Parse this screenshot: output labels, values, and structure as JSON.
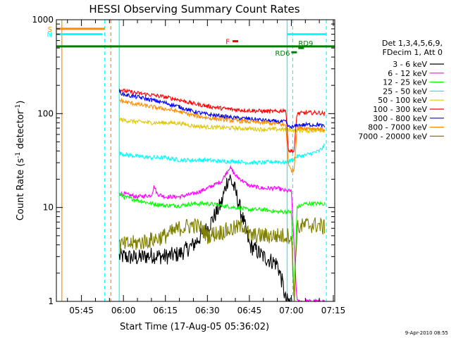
{
  "chart_data": {
    "type": "line",
    "title": "HESSI Observing Summary Count Rates",
    "xlabel": "Start Time (17-Aug-05 05:36:02)",
    "ylabel": "Count Rate (s",
    "ylabel_sup1": "-1",
    "ylabel_mid": " detector",
    "ylabel_sup2": "-1",
    "ylabel_end": ")",
    "y_scale": "log",
    "ylim": [
      1,
      1000
    ],
    "xlim": [
      "05:36:02",
      "07:15:30"
    ],
    "x_ticks": [
      "05:45",
      "06:00",
      "06:15",
      "06:30",
      "06:45",
      "07:00",
      "07:15"
    ],
    "y_ticks": [
      "1",
      "10",
      "100",
      "1000"
    ],
    "legend_header": [
      "Det 1,3,4,5,6,9,",
      "FDecim 1, Att 0"
    ],
    "legend_position": "right",
    "series": [
      {
        "name": "3 - 6 keV",
        "color": "#000000",
        "points": [
          [
            "05:58:30",
            3
          ],
          [
            "06:00",
            3
          ],
          [
            "06:05",
            2.9
          ],
          [
            "06:10",
            3.1
          ],
          [
            "06:15",
            3
          ],
          [
            "06:20",
            3.2
          ],
          [
            "06:25",
            4
          ],
          [
            "06:30",
            6
          ],
          [
            "06:35",
            11
          ],
          [
            "06:37",
            19
          ],
          [
            "06:38",
            21
          ],
          [
            "06:40",
            15
          ],
          [
            "06:43",
            7
          ],
          [
            "06:45",
            4
          ],
          [
            "06:50",
            3
          ],
          [
            "06:55",
            2.5
          ],
          [
            "06:57",
            1.5
          ],
          [
            "06:58",
            1
          ],
          [
            "07:00",
            1
          ]
        ]
      },
      {
        "name": "6 - 12 keV",
        "color": "#ff00ff",
        "points": [
          [
            "05:58:30",
            14
          ],
          [
            "06:00",
            14
          ],
          [
            "06:05",
            13
          ],
          [
            "06:10",
            13.5
          ],
          [
            "06:11",
            17
          ],
          [
            "06:12",
            14
          ],
          [
            "06:15",
            13
          ],
          [
            "06:20",
            13
          ],
          [
            "06:25",
            14
          ],
          [
            "06:30",
            16
          ],
          [
            "06:35",
            19
          ],
          [
            "06:38",
            27
          ],
          [
            "06:40",
            22
          ],
          [
            "06:45",
            17
          ],
          [
            "06:50",
            16
          ],
          [
            "06:55",
            16
          ],
          [
            "06:58",
            15
          ],
          [
            "07:00",
            15
          ],
          [
            "07:02",
            1
          ],
          [
            "07:10",
            1
          ],
          [
            "07:12",
            1
          ]
        ]
      },
      {
        "name": "12 - 25 keV",
        "color": "#00ff00",
        "points": [
          [
            "05:58:30",
            14
          ],
          [
            "06:00",
            13
          ],
          [
            "06:05",
            12
          ],
          [
            "06:10",
            11
          ],
          [
            "06:15",
            10.5
          ],
          [
            "06:20",
            10.5
          ],
          [
            "06:25",
            11
          ],
          [
            "06:30",
            11
          ],
          [
            "06:35",
            10.5
          ],
          [
            "06:40",
            10
          ],
          [
            "06:45",
            9.5
          ],
          [
            "06:50",
            9.5
          ],
          [
            "06:55",
            9
          ],
          [
            "06:58",
            9
          ],
          [
            "07:00",
            9
          ],
          [
            "07:01",
            1
          ],
          [
            "07:02",
            10
          ],
          [
            "07:05",
            11
          ],
          [
            "07:10",
            11
          ],
          [
            "07:12",
            11
          ]
        ]
      },
      {
        "name": "25 - 50 keV",
        "color": "#00ffff",
        "points": [
          [
            "05:58:30",
            38
          ],
          [
            "06:00",
            37
          ],
          [
            "06:05",
            35
          ],
          [
            "06:10",
            34
          ],
          [
            "06:15",
            34
          ],
          [
            "06:20",
            32
          ],
          [
            "06:25",
            32
          ],
          [
            "06:30",
            32
          ],
          [
            "06:35",
            31
          ],
          [
            "06:40",
            31
          ],
          [
            "06:45",
            30
          ],
          [
            "06:50",
            30
          ],
          [
            "06:55",
            31
          ],
          [
            "06:58",
            30
          ],
          [
            "07:00",
            32
          ],
          [
            "07:02",
            35
          ],
          [
            "07:05",
            36
          ],
          [
            "07:10",
            40
          ],
          [
            "07:12",
            46
          ]
        ]
      },
      {
        "name": "50 - 100 keV",
        "color": "#e0c800",
        "points": [
          [
            "05:58:30",
            88
          ],
          [
            "06:00",
            85
          ],
          [
            "06:05",
            82
          ],
          [
            "06:10",
            80
          ],
          [
            "06:15",
            80
          ],
          [
            "06:20",
            79
          ],
          [
            "06:25",
            74
          ],
          [
            "06:30",
            72
          ],
          [
            "06:35",
            71
          ],
          [
            "06:40",
            70
          ],
          [
            "06:45",
            69
          ],
          [
            "06:50",
            68
          ],
          [
            "06:55",
            68
          ],
          [
            "06:58",
            68
          ],
          [
            "07:00",
            67
          ],
          [
            "07:02",
            66
          ],
          [
            "07:05",
            66
          ],
          [
            "07:10",
            66
          ],
          [
            "07:12",
            67
          ]
        ]
      },
      {
        "name": "100 - 300 keV",
        "color": "#ff0000",
        "points": [
          [
            "05:58:30",
            182
          ],
          [
            "06:00",
            175
          ],
          [
            "06:05",
            165
          ],
          [
            "06:10",
            158
          ],
          [
            "06:15",
            150
          ],
          [
            "06:20",
            140
          ],
          [
            "06:25",
            128
          ],
          [
            "06:30",
            120
          ],
          [
            "06:35",
            114
          ],
          [
            "06:40",
            110
          ],
          [
            "06:45",
            108
          ],
          [
            "06:50",
            106
          ],
          [
            "06:55",
            105
          ],
          [
            "06:58",
            110
          ],
          [
            "06:59",
            40
          ],
          [
            "07:00",
            40
          ],
          [
            "07:01",
            40
          ],
          [
            "07:02",
            100
          ],
          [
            "07:05",
            102
          ],
          [
            "07:10",
            102
          ],
          [
            "07:12",
            100
          ]
        ]
      },
      {
        "name": "300 - 800 keV",
        "color": "#0000ff",
        "points": [
          [
            "05:58:30",
            172
          ],
          [
            "06:00",
            160
          ],
          [
            "06:05",
            150
          ],
          [
            "06:10",
            140
          ],
          [
            "06:15",
            130
          ],
          [
            "06:20",
            118
          ],
          [
            "06:25",
            105
          ],
          [
            "06:30",
            98
          ],
          [
            "06:35",
            94
          ],
          [
            "06:40",
            90
          ],
          [
            "06:45",
            88
          ],
          [
            "06:50",
            85
          ],
          [
            "06:55",
            82
          ],
          [
            "06:58",
            82
          ],
          [
            "06:59",
            72
          ],
          [
            "07:00",
            72
          ],
          [
            "07:01",
            72
          ],
          [
            "07:02",
            75
          ],
          [
            "07:05",
            76
          ],
          [
            "07:10",
            76
          ],
          [
            "07:12",
            72
          ]
        ]
      },
      {
        "name": "800 - 7000 keV",
        "color": "#ff8c00",
        "points": [
          [
            "05:58:30",
            140
          ],
          [
            "06:00",
            134
          ],
          [
            "06:05",
            126
          ],
          [
            "06:10",
            118
          ],
          [
            "06:15",
            112
          ],
          [
            "06:20",
            105
          ],
          [
            "06:25",
            96
          ],
          [
            "06:30",
            90
          ],
          [
            "06:35",
            87
          ],
          [
            "06:40",
            84
          ],
          [
            "06:45",
            82
          ],
          [
            "06:50",
            80
          ],
          [
            "06:55",
            78
          ],
          [
            "06:58",
            75
          ],
          [
            "06:59",
            28
          ],
          [
            "07:00",
            25
          ],
          [
            "07:01",
            25
          ],
          [
            "07:02",
            70
          ],
          [
            "07:05",
            70
          ],
          [
            "07:10",
            69
          ],
          [
            "07:12",
            68
          ]
        ]
      },
      {
        "name": "7000 - 20000 keV",
        "color": "#808000",
        "points": [
          [
            "05:58:30",
            4
          ],
          [
            "06:00",
            4
          ],
          [
            "06:05",
            4.2
          ],
          [
            "06:10",
            4.5
          ],
          [
            "06:15",
            5
          ],
          [
            "06:20",
            6
          ],
          [
            "06:25",
            6.5
          ],
          [
            "06:28",
            6
          ],
          [
            "06:30",
            5
          ],
          [
            "06:35",
            5.5
          ],
          [
            "06:40",
            6
          ],
          [
            "06:43",
            6.5
          ],
          [
            "06:45",
            5
          ],
          [
            "06:50",
            5
          ],
          [
            "06:55",
            5
          ],
          [
            "06:58",
            5
          ],
          [
            "07:00",
            5
          ],
          [
            "07:01",
            1
          ],
          [
            "07:02",
            6
          ],
          [
            "07:05",
            6.5
          ],
          [
            "07:10",
            6.5
          ],
          [
            "07:12",
            6
          ]
        ]
      }
    ],
    "state_flags": [
      {
        "label": "S",
        "color": "#ff8c00",
        "y": 800,
        "start": "05:36:02",
        "end": "05:53:20"
      },
      {
        "label": "N",
        "color": "#00ffff",
        "y": 700,
        "start": "05:36:02",
        "end": "05:52:30"
      },
      {
        "label": "",
        "color": "#00ffff",
        "y": 700,
        "start": "06:58:30",
        "end": "07:12:30"
      },
      {
        "label": "F",
        "color": "#ff0000",
        "y": 590,
        "start": "06:39:00",
        "end": "06:41:00"
      },
      {
        "label": "",
        "color": "#008000",
        "y": 520,
        "start": "05:36:02",
        "end": "07:15:30"
      },
      {
        "label": "RD6",
        "color": "#008000",
        "y": 450,
        "start": "07:00:00",
        "end": "07:02:00"
      },
      {
        "label": "RD9",
        "color": "#008000",
        "y": 500,
        "start": "07:02:30",
        "end": "07:04:30"
      }
    ],
    "vertical_markers": [
      {
        "time": "05:38:00",
        "color": "#ff8c00",
        "style": "solid"
      },
      {
        "time": "05:53:20",
        "color": "#00ffff",
        "style": "dashed"
      },
      {
        "time": "05:55:30",
        "color": "#ff8c00",
        "style": "dashed"
      },
      {
        "time": "05:58:30",
        "color": "#00ffff",
        "style": "solid"
      },
      {
        "time": "06:58:30",
        "color": "#00ffff",
        "style": "solid"
      },
      {
        "time": "07:00:30",
        "color": "#00ffff",
        "style": "dashed"
      },
      {
        "time": "07:12:30",
        "color": "#00ffff",
        "style": "dashed"
      }
    ]
  },
  "footer": {
    "timestamp": "9-Apr-2010 08:55"
  }
}
